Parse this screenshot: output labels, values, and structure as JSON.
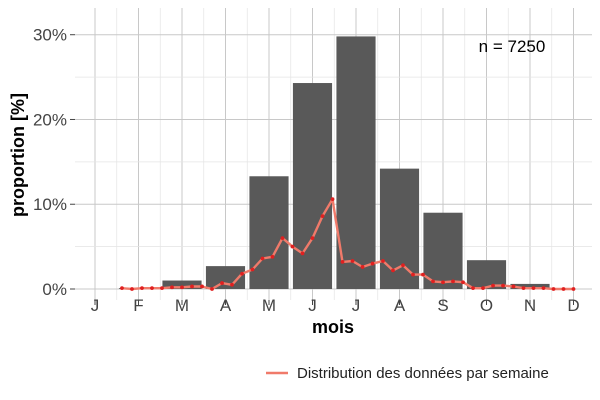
{
  "chart_data": {
    "type": "bar",
    "xlabel": "mois",
    "ylabel": "proportion [%]",
    "annotation": "n = 7250",
    "categories": [
      "J",
      "F",
      "M",
      "A",
      "M",
      "J",
      "J",
      "A",
      "S",
      "O",
      "N",
      "D"
    ],
    "bar_values": [
      0.0,
      0.1,
      1.0,
      2.7,
      13.3,
      24.3,
      29.8,
      14.2,
      9.0,
      3.4,
      0.6,
      0.0
    ],
    "ylim": [
      0,
      31.5
    ],
    "yticks": [
      0,
      10,
      20,
      30
    ],
    "ytick_labels": [
      "0%",
      "10%",
      "20%",
      "30%"
    ],
    "grid": true,
    "bar_color": "#595959",
    "line_series": {
      "name": "Distribution des données par semaine",
      "color": "#f07a6a",
      "point_color": "#e02020",
      "x_months": [
        0.62,
        0.85,
        1.08,
        1.31,
        1.54,
        1.77,
        2.0,
        2.23,
        2.46,
        2.69,
        2.92,
        3.15,
        3.38,
        3.62,
        3.85,
        4.08,
        4.31,
        4.54,
        4.77,
        5.0,
        5.23,
        5.46,
        5.69,
        5.92,
        6.15,
        6.38,
        6.62,
        6.85,
        7.08,
        7.31,
        7.54,
        7.77,
        8.0,
        8.23,
        8.46,
        8.69,
        8.92,
        9.15,
        9.38,
        9.62,
        9.85,
        10.08,
        10.31,
        10.54,
        10.77,
        11.0
      ],
      "values": [
        0.1,
        0.0,
        0.1,
        0.1,
        0.1,
        0.2,
        0.2,
        0.3,
        0.3,
        0.0,
        0.7,
        0.5,
        1.8,
        2.3,
        3.6,
        3.8,
        6.0,
        5.0,
        4.2,
        6.0,
        8.6,
        10.6,
        3.2,
        3.3,
        2.6,
        3.0,
        3.3,
        2.2,
        2.8,
        1.7,
        1.7,
        0.9,
        0.8,
        0.9,
        0.8,
        0.1,
        0.1,
        0.4,
        0.4,
        0.3,
        0.1,
        0.1,
        0.1,
        0.0,
        0.0,
        0.0
      ]
    },
    "legend_position": "bottom-right"
  }
}
